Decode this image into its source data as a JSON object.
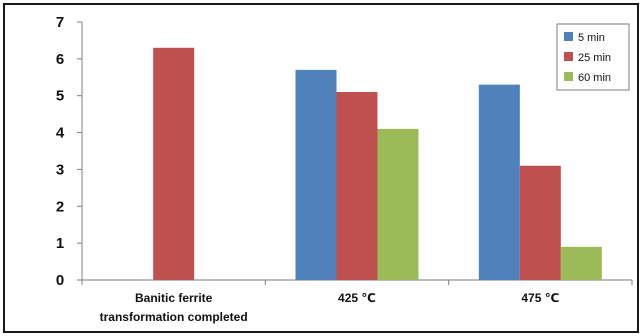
{
  "chart_data": {
    "type": "bar",
    "categories": [
      [
        "Banitic ferrite",
        "transformation completed"
      ],
      [
        "425 ℃"
      ],
      [
        "475 ℃"
      ]
    ],
    "series": [
      {
        "name": "5 min",
        "color": "#4f81bd",
        "values": [
          null,
          5.7,
          5.3
        ]
      },
      {
        "name": "25 min",
        "color": "#c0504d",
        "values": [
          6.3,
          5.1,
          3.1
        ]
      },
      {
        "name": "60 min",
        "color": "#9bbb59",
        "values": [
          null,
          4.1,
          0.9
        ]
      }
    ],
    "y_ticks": [
      "0",
      "1",
      "2",
      "3",
      "4",
      "5",
      "6",
      "7"
    ],
    "ylim": [
      0,
      7
    ],
    "grid": false,
    "legend_position": "top-right",
    "title": "",
    "xlabel": "",
    "ylabel": ""
  }
}
